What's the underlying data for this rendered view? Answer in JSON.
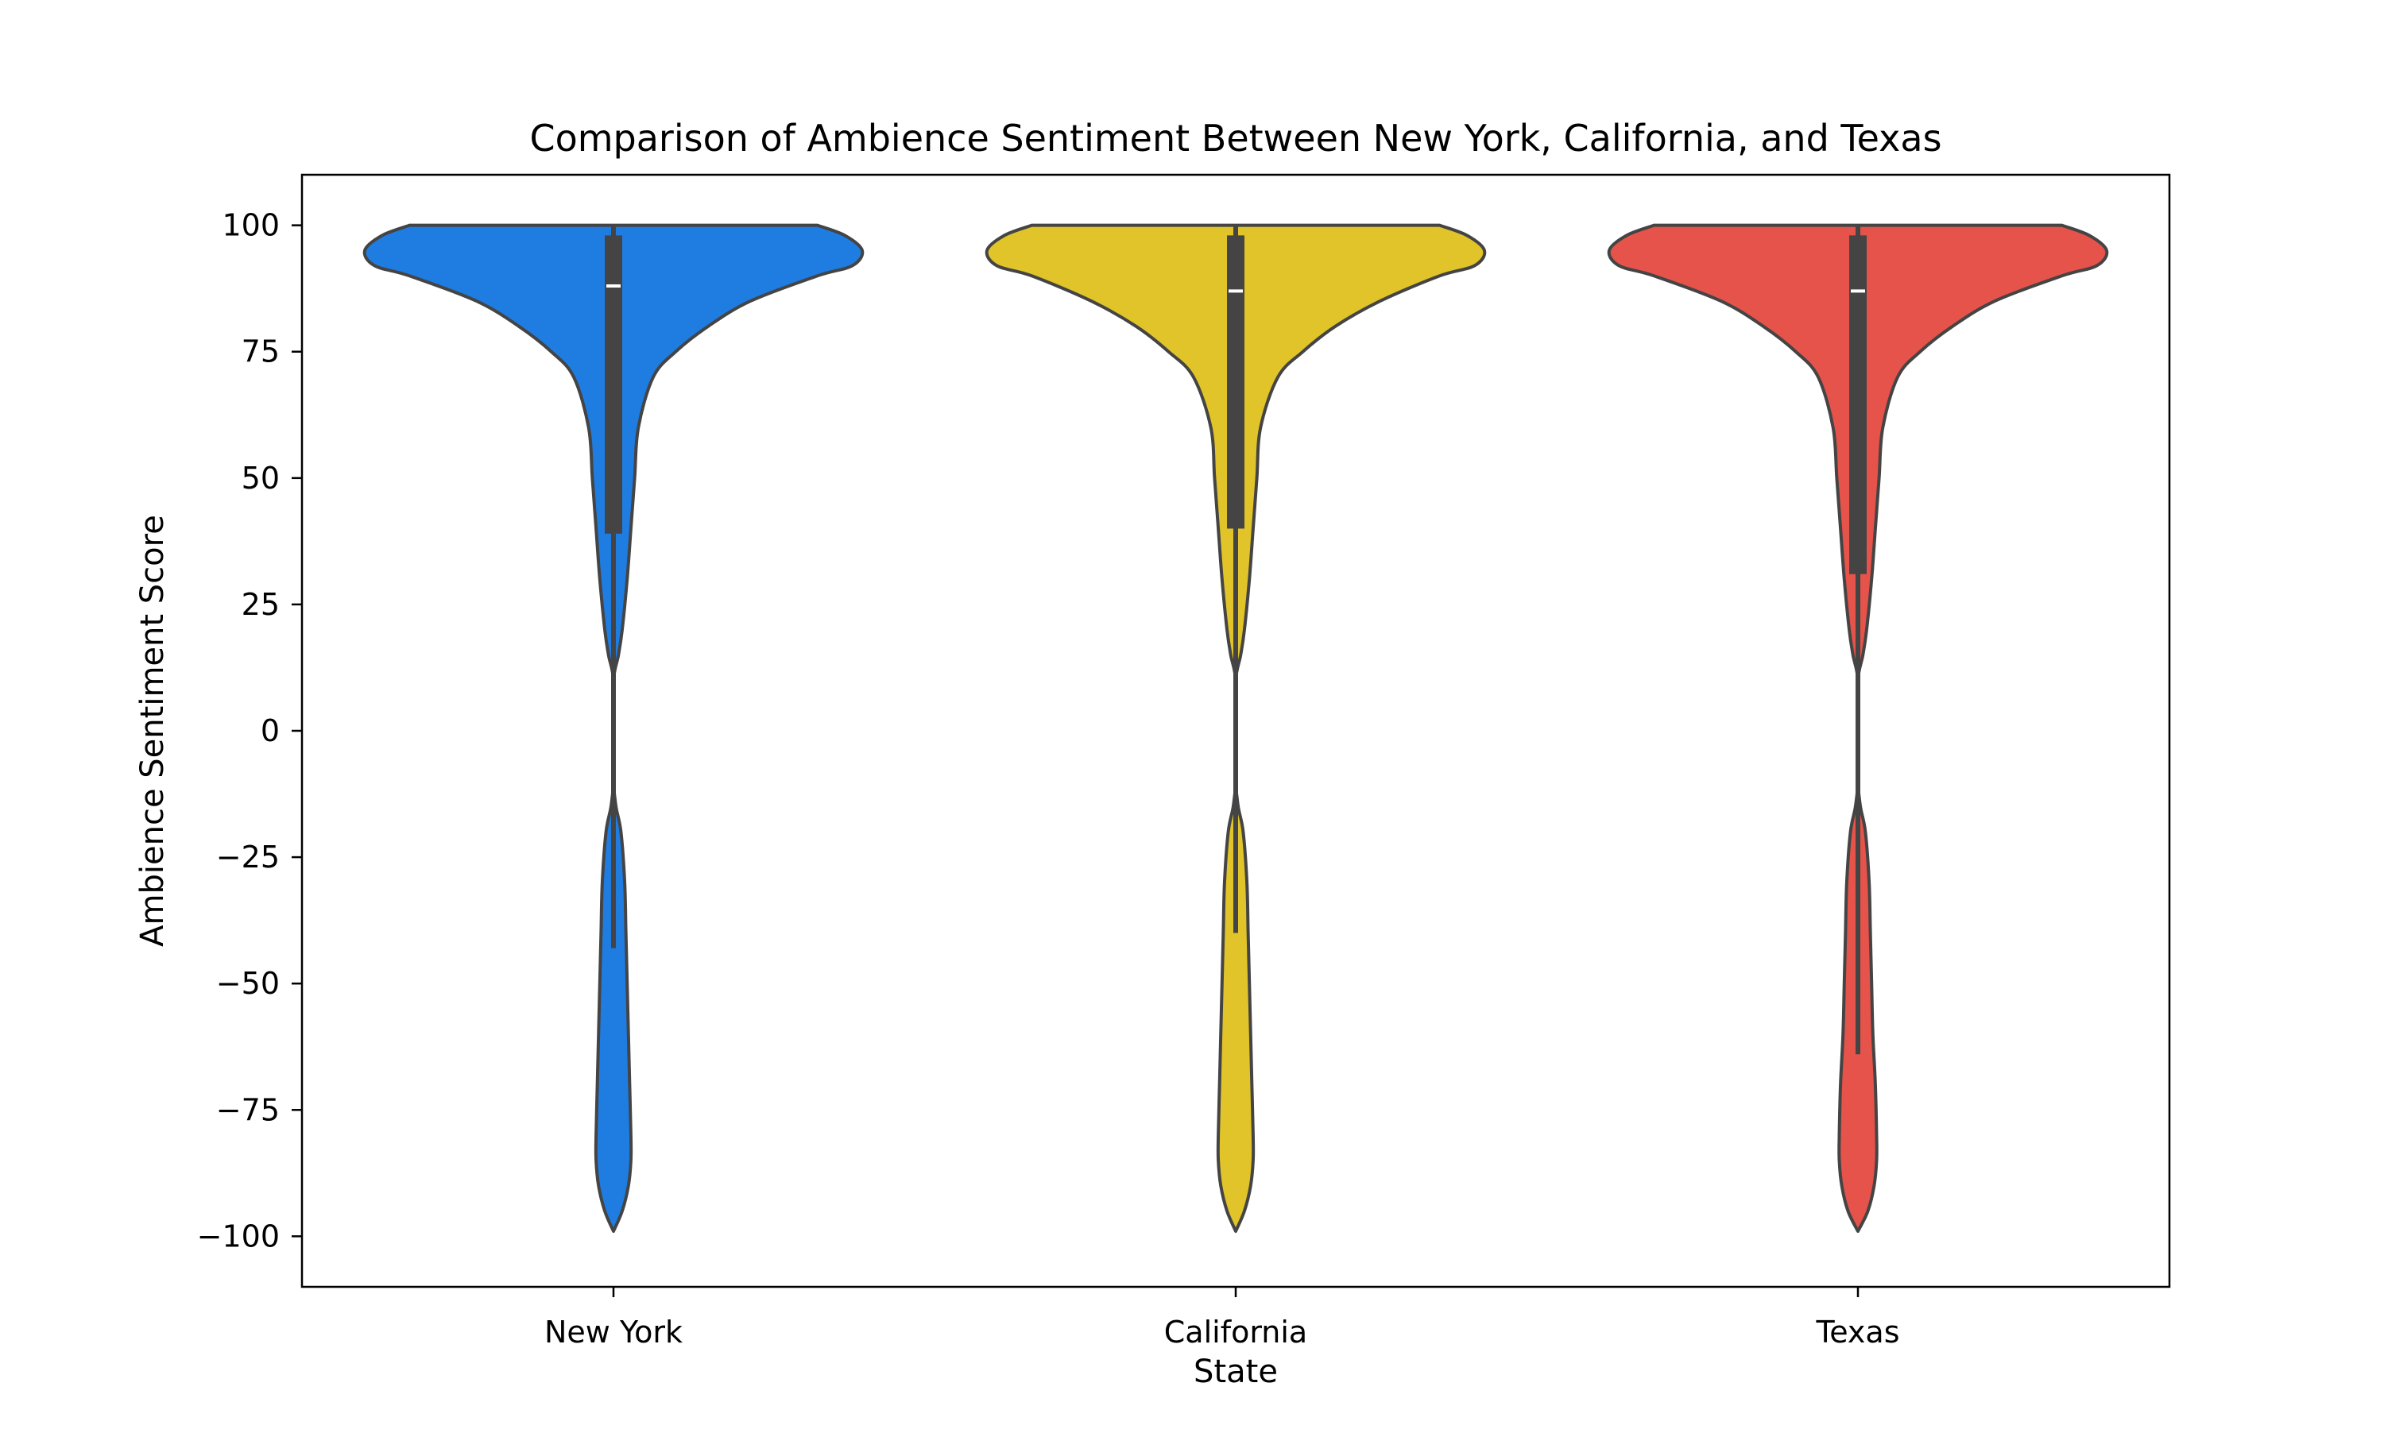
{
  "chart_data": {
    "type": "violin",
    "title": "Comparison of Ambience Sentiment Between New York, California, and Texas",
    "xlabel": "State",
    "ylabel": "Ambience Sentiment Score",
    "categories": [
      "New York",
      "California",
      "Texas"
    ],
    "ylim": [
      -110,
      110
    ],
    "yticks": [
      100,
      75,
      50,
      25,
      0,
      -25,
      -50,
      -75,
      -100
    ],
    "ytick_labels": [
      "100",
      "75",
      "50",
      "25",
      "0",
      "−25",
      "−50",
      "−75",
      "−100"
    ],
    "grid": false,
    "legend": "none",
    "colors": {
      "New York": "#1f7de2",
      "California": "#e1c42a",
      "Texas": "#e5534b",
      "outline": "#444444",
      "median": "#ffffff"
    },
    "series": [
      {
        "category": "New York",
        "min": -100,
        "max": 100,
        "q1": 39,
        "median": 88,
        "q3": 98,
        "whisker_low": -43,
        "whisker_high": 100,
        "density_profile": [
          [
            100,
            0.82
          ],
          [
            98,
            0.93
          ],
          [
            95,
            1.0
          ],
          [
            92,
            0.96
          ],
          [
            90,
            0.82
          ],
          [
            85,
            0.55
          ],
          [
            80,
            0.38
          ],
          [
            75,
            0.25
          ],
          [
            70,
            0.16
          ],
          [
            60,
            0.1
          ],
          [
            50,
            0.085
          ],
          [
            40,
            0.07
          ],
          [
            30,
            0.055
          ],
          [
            20,
            0.035
          ],
          [
            15,
            0.02
          ],
          [
            10,
            0.0
          ],
          [
            0,
            0.0
          ],
          [
            -10,
            0.0
          ],
          [
            -15,
            0.01
          ],
          [
            -20,
            0.03
          ],
          [
            -30,
            0.045
          ],
          [
            -40,
            0.05
          ],
          [
            -50,
            0.055
          ],
          [
            -60,
            0.06
          ],
          [
            -70,
            0.065
          ],
          [
            -80,
            0.07
          ],
          [
            -85,
            0.07
          ],
          [
            -90,
            0.06
          ],
          [
            -95,
            0.035
          ],
          [
            -99,
            0.0
          ]
        ]
      },
      {
        "category": "California",
        "min": -100,
        "max": 100,
        "q1": 40,
        "median": 87,
        "q3": 98,
        "whisker_low": -40,
        "whisker_high": 100,
        "density_profile": [
          [
            100,
            0.82
          ],
          [
            98,
            0.93
          ],
          [
            95,
            1.0
          ],
          [
            92,
            0.96
          ],
          [
            90,
            0.82
          ],
          [
            85,
            0.58
          ],
          [
            80,
            0.4
          ],
          [
            75,
            0.27
          ],
          [
            70,
            0.17
          ],
          [
            60,
            0.1
          ],
          [
            50,
            0.085
          ],
          [
            40,
            0.07
          ],
          [
            30,
            0.055
          ],
          [
            20,
            0.035
          ],
          [
            15,
            0.02
          ],
          [
            10,
            0.0
          ],
          [
            0,
            0.0
          ],
          [
            -10,
            0.0
          ],
          [
            -15,
            0.01
          ],
          [
            -20,
            0.03
          ],
          [
            -30,
            0.045
          ],
          [
            -40,
            0.05
          ],
          [
            -50,
            0.055
          ],
          [
            -60,
            0.06
          ],
          [
            -70,
            0.065
          ],
          [
            -80,
            0.07
          ],
          [
            -85,
            0.07
          ],
          [
            -90,
            0.06
          ],
          [
            -95,
            0.035
          ],
          [
            -99,
            0.0
          ]
        ]
      },
      {
        "category": "Texas",
        "min": -100,
        "max": 100,
        "q1": 31,
        "median": 87,
        "q3": 98,
        "whisker_low": -64,
        "whisker_high": 100,
        "density_profile": [
          [
            100,
            0.82
          ],
          [
            98,
            0.93
          ],
          [
            95,
            1.0
          ],
          [
            92,
            0.96
          ],
          [
            90,
            0.82
          ],
          [
            85,
            0.55
          ],
          [
            80,
            0.38
          ],
          [
            75,
            0.25
          ],
          [
            70,
            0.16
          ],
          [
            60,
            0.1
          ],
          [
            50,
            0.085
          ],
          [
            40,
            0.07
          ],
          [
            30,
            0.055
          ],
          [
            20,
            0.035
          ],
          [
            15,
            0.02
          ],
          [
            10,
            0.0
          ],
          [
            0,
            0.0
          ],
          [
            -10,
            0.0
          ],
          [
            -15,
            0.01
          ],
          [
            -20,
            0.03
          ],
          [
            -30,
            0.045
          ],
          [
            -40,
            0.05
          ],
          [
            -50,
            0.055
          ],
          [
            -60,
            0.06
          ],
          [
            -70,
            0.07
          ],
          [
            -80,
            0.075
          ],
          [
            -85,
            0.075
          ],
          [
            -90,
            0.065
          ],
          [
            -95,
            0.04
          ],
          [
            -99,
            0.0
          ]
        ]
      }
    ]
  }
}
